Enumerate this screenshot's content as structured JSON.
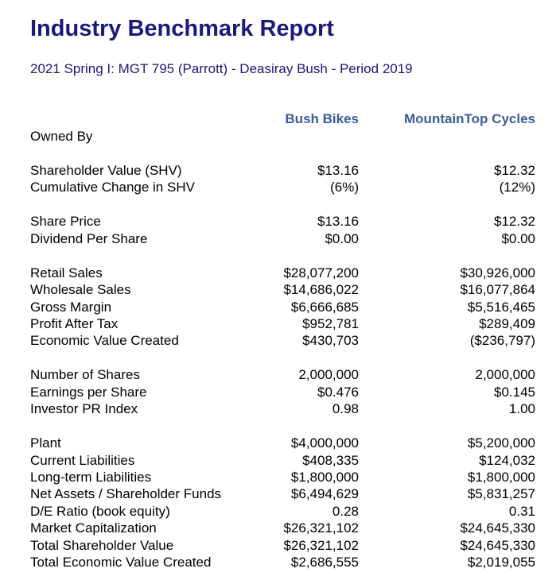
{
  "header": {
    "title": "Industry Benchmark Report",
    "subtitle": "2021 Spring I: MGT 795 (Parrott) - Deasiray Bush - Period 2019"
  },
  "table": {
    "columns": [
      "Bush Bikes",
      "MountainTop Cycles"
    ],
    "sections": [
      [
        [
          "Owned By"
        ]
      ],
      [
        [
          "Shareholder Value (SHV)",
          "$13.16",
          "$12.32"
        ],
        [
          "Cumulative Change in SHV",
          "(6%)",
          "(12%)"
        ]
      ],
      [
        [
          "Share Price",
          "$13.16",
          "$12.32"
        ],
        [
          "Dividend Per Share",
          "$0.00",
          "$0.00"
        ]
      ],
      [
        [
          "Retail Sales",
          "$28,077,200",
          "$30,926,000"
        ],
        [
          "Wholesale Sales",
          "$14,686,022",
          "$16,077,864"
        ],
        [
          "Gross Margin",
          "$6,666,685",
          "$5,516,465"
        ],
        [
          "Profit After Tax",
          "$952,781",
          "$289,409"
        ],
        [
          "Economic Value Created",
          "$430,703",
          "($236,797)"
        ]
      ],
      [
        [
          "Number of Shares",
          "2,000,000",
          "2,000,000"
        ],
        [
          "Earnings per Share",
          "$0.476",
          "$0.145"
        ],
        [
          "Investor PR Index",
          "0.98",
          "1.00"
        ]
      ],
      [
        [
          "Plant",
          "$4,000,000",
          "$5,200,000"
        ],
        [
          "Current Liabilities",
          "$408,335",
          "$124,032"
        ],
        [
          "Long-term Liabilities",
          "$1,800,000",
          "$1,800,000"
        ],
        [
          "Net Assets / Shareholder Funds",
          "$6,494,629",
          "$5,831,257"
        ],
        [
          "D/E Ratio (book equity)",
          "0.28",
          "0.31"
        ],
        [
          "Market Capitalization",
          "$26,321,102",
          "$24,645,330"
        ],
        [
          "Total Shareholder Value",
          "$26,321,102",
          "$24,645,330"
        ],
        [
          "Total Economic Value Created",
          "$2,686,555",
          "$2,019,055"
        ]
      ]
    ]
  }
}
